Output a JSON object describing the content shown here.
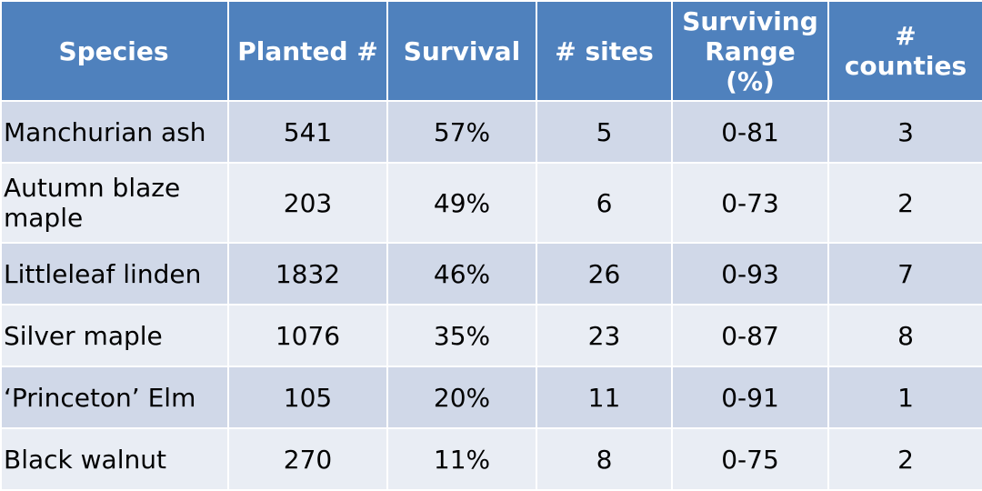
{
  "chart_data": {
    "type": "table",
    "columns": [
      "Species",
      "Planted #",
      "Survival",
      "# sites",
      "Surviving Range (%)",
      "# counties"
    ],
    "rows": [
      [
        "Manchurian ash",
        "541",
        "57%",
        "5",
        "0-81",
        "3"
      ],
      [
        "Autumn blaze maple",
        "203",
        "49%",
        "6",
        "0-73",
        "2"
      ],
      [
        "Littleleaf linden",
        "1832",
        "46%",
        "26",
        "0-93",
        "7"
      ],
      [
        "Silver maple",
        "1076",
        "35%",
        "23",
        "0-87",
        "8"
      ],
      [
        "‘Princeton’ Elm",
        "105",
        "20%",
        "11",
        "0-91",
        "1"
      ],
      [
        "Black walnut",
        "270",
        "11%",
        "8",
        "0-75",
        "2"
      ]
    ]
  },
  "colors": {
    "header_bg": "#4f81bd",
    "header_text": "#ffffff",
    "row_odd_bg": "#d0d8e8",
    "row_even_bg": "#e9edf4"
  }
}
